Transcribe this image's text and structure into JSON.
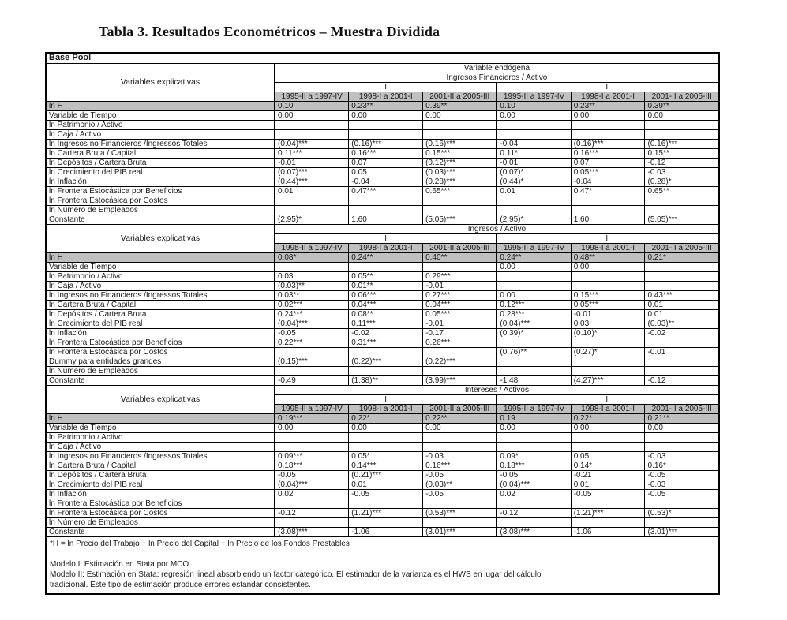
{
  "title": "Tabla 3. Resultados Econométricos – Muestra Dividida",
  "table": {
    "base_label": "Base Pool",
    "explicativas_label": "Variables explicativas",
    "endogenous_header": "Variable endógena",
    "group_labels": [
      "I",
      "II"
    ],
    "period_headers": [
      "1995-II a 1997-IV",
      "1998-I a 2001-I",
      "2001-II a 2005-III",
      "1995-II a 1997-IV",
      "1998-I a 2001-I",
      "2001-II a 2005-III"
    ],
    "highlight_color": "#c0c0c0",
    "panels": [
      {
        "dependent_var": "Ingresos Financieros  / Activo",
        "rows": [
          {
            "label": "ln H",
            "highlight": true,
            "values": [
              "0.10",
              "0.23**",
              "0.39**",
              "0.10",
              "0.23**",
              "0.39**"
            ]
          },
          {
            "label": "Variable de Tiempo",
            "values": [
              "0.00",
              "0.00",
              "0.00",
              "0.00",
              "0.00",
              "0.00"
            ]
          },
          {
            "label": "ln Patrimonio / Activo",
            "values": [
              "",
              "",
              "",
              "",
              "",
              ""
            ]
          },
          {
            "label": "ln Caja / Activo",
            "values": [
              "",
              "",
              "",
              "",
              "",
              ""
            ]
          },
          {
            "label": "ln Ingresos no Financieros /Ingressos Totales",
            "values": [
              "(0.04)***",
              "(0.16)***",
              "(0.16)***",
              "-0.04",
              "(0.16)***",
              "(0.16)***"
            ]
          },
          {
            "label": "ln Cartera Bruta / Capital",
            "values": [
              "0.11***",
              "0.16***",
              "0.15***",
              "0.11*",
              "0.16***",
              "0.15**"
            ]
          },
          {
            "label": "ln Depósitos / Cartera Bruta",
            "values": [
              "-0.01",
              "0.07",
              "(0.12)***",
              "-0.01",
              "0.07",
              "-0.12"
            ]
          },
          {
            "label": "ln Crecimiento del PIB real",
            "values": [
              "(0.07)***",
              "0.05",
              "(0.03)***",
              "(0.07)*",
              "0.05***",
              "-0.03"
            ]
          },
          {
            "label": "ln Inflación",
            "values": [
              "(0.44)***",
              "-0.04",
              "(0.28)***",
              "(0.44)*",
              "-0.04",
              "(0.28)*"
            ]
          },
          {
            "label": "ln Frontera Estocástica por Beneficios",
            "values": [
              "0.01",
              "0.47***",
              "0.65***",
              "0.01",
              "0.47*",
              "0.65**"
            ]
          },
          {
            "label": "ln Frontera Estocásica por Costos",
            "values": [
              "",
              "",
              "",
              "",
              "",
              ""
            ]
          },
          {
            "label": "ln Número de Empleados",
            "values": [
              "",
              "",
              "",
              "",
              "",
              ""
            ]
          },
          {
            "label": "Constante",
            "values": [
              "(2.95)*",
              "1.60",
              "(5.05)***",
              "(2.95)*",
              "1.60",
              "(5.05)***"
            ]
          }
        ]
      },
      {
        "dependent_var": "Ingresos  / Activo",
        "rows": [
          {
            "label": "ln H",
            "highlight": true,
            "values": [
              "0.08*",
              "0.24**",
              "0.40**",
              "0.24**",
              "0.48**",
              "0.21*"
            ]
          },
          {
            "label": "Variable de Tiempo",
            "values": [
              "",
              "",
              "",
              "0.00",
              "0.00",
              ""
            ]
          },
          {
            "label": "ln Patrimonio / Activo",
            "values": [
              "0.03",
              "0.05**",
              "0.29***",
              "",
              "",
              ""
            ]
          },
          {
            "label": "ln Caja / Activo",
            "values": [
              "(0.03)**",
              "0.01**",
              "-0.01",
              "",
              "",
              ""
            ]
          },
          {
            "label": "ln Ingresos no Financieros /Ingressos Totales",
            "values": [
              "0.03**",
              "0.06***",
              "0.27***",
              "0.00",
              "0.15***",
              "0.43***"
            ]
          },
          {
            "label": "ln Cartera Bruta / Capital",
            "values": [
              "0.02***",
              "0.04***",
              "0.04***",
              "0.12***",
              "0.05***",
              "0.01"
            ]
          },
          {
            "label": "ln Depósitos / Cartera Bruta",
            "values": [
              "0.24***",
              "0.08**",
              "0.05***",
              "0.28***",
              "-0.01",
              "0.01"
            ]
          },
          {
            "label": "ln Crecimiento del PIB real",
            "values": [
              "(0.04)***",
              "0.11***",
              "-0.01",
              "(0.04)***",
              "0.03",
              "(0.03)**"
            ]
          },
          {
            "label": "ln Inflación",
            "values": [
              "-0.05",
              "-0.02",
              "-0.17",
              "(0.39)*",
              "(0.10)*",
              "-0.02"
            ]
          },
          {
            "label": "ln Frontera Estocástica por Beneficios",
            "values": [
              "0.22***",
              "0.31***",
              "0.26***",
              "",
              "",
              ""
            ]
          },
          {
            "label": "ln Frontera Estocásica por Costos",
            "values": [
              "",
              "",
              "",
              "(0.76)**",
              "(0.27)*",
              "-0.01"
            ]
          },
          {
            "label": "Dummy para entidades grandes",
            "values": [
              "(0.15)***",
              "(0.22)***",
              "(0.22)***",
              "",
              "",
              ""
            ]
          },
          {
            "label": "ln Número de Empleados",
            "values": [
              "",
              "",
              "",
              "",
              "",
              ""
            ]
          },
          {
            "label": "Constante",
            "values": [
              "-0.49",
              "(1.38)**",
              "(3.99)***",
              "-1.48",
              "(4.27)***",
              "-0.12"
            ]
          }
        ]
      },
      {
        "dependent_var": "Intereses / Activos",
        "rows": [
          {
            "label": "ln H",
            "highlight": true,
            "values": [
              "0.19***",
              "0.22*",
              "0.22**",
              "0.19",
              "0.22*",
              "0.21**"
            ]
          },
          {
            "label": "Variable de Tiempo",
            "values": [
              "0.00",
              "0.00",
              "0.00",
              "0.00",
              "0.00",
              "0.00"
            ]
          },
          {
            "label": "ln Patrimonio / Activo",
            "values": [
              "",
              "",
              "",
              "",
              "",
              ""
            ]
          },
          {
            "label": "ln Caja / Activo",
            "values": [
              "",
              "",
              "",
              "",
              "",
              ""
            ]
          },
          {
            "label": "ln Ingresos no Financieros /Ingressos Totales",
            "values": [
              "0.09***",
              "0.05*",
              "-0.03",
              "0.09*",
              "0.05",
              "-0.03"
            ]
          },
          {
            "label": "ln Cartera Bruta / Capital",
            "values": [
              "0.18***",
              "0.14***",
              "0.16***",
              "0.18***",
              "0.14*",
              "0.16*"
            ]
          },
          {
            "label": "ln Depósitos / Cartera Bruta",
            "values": [
              "-0.05",
              "(0.21)***",
              "-0.05",
              "-0.05",
              "-0.21",
              "-0.05"
            ]
          },
          {
            "label": "ln Crecimiento del PIB real",
            "values": [
              "(0.04)***",
              "0.01",
              "(0.03)**",
              "(0.04)***",
              "0.01",
              "-0.03"
            ]
          },
          {
            "label": "ln Inflación",
            "values": [
              "0.02",
              "-0.05",
              "-0.05",
              "0.02",
              "-0.05",
              "-0.05"
            ]
          },
          {
            "label": "ln Frontera Estocástica por Beneficios",
            "values": [
              "",
              "",
              "",
              "",
              "",
              ""
            ]
          },
          {
            "label": "ln Frontera Estocásica por Costos",
            "values": [
              "-0.12",
              "(1.21)***",
              "(0.53)***",
              "-0.12",
              "(1.21)***",
              "(0.53)*"
            ]
          },
          {
            "label": "ln Número de Empleados",
            "values": [
              "",
              "",
              "",
              "",
              "",
              ""
            ]
          },
          {
            "label": "Constante",
            "values": [
              "(3.08)***",
              "-1.06",
              "(3.01)***",
              "(3.08)***",
              "-1.06",
              "(3.01)***"
            ]
          }
        ]
      }
    ],
    "footnotes": [
      "*H = ln Precio del Trabajo + ln Precio del Capital + ln Precio de los Fondos Prestables",
      "",
      "Modelo I: Estimación en Stata por MCO.",
      "Modelo II: Estimación en Stata: regresión lineal absorbiendo un factor categórico. El estimador de la varianza es el HWS en lugar del cálculo",
      "tradicional. Este tipo de estimación produce errores estandar consistentes."
    ]
  }
}
